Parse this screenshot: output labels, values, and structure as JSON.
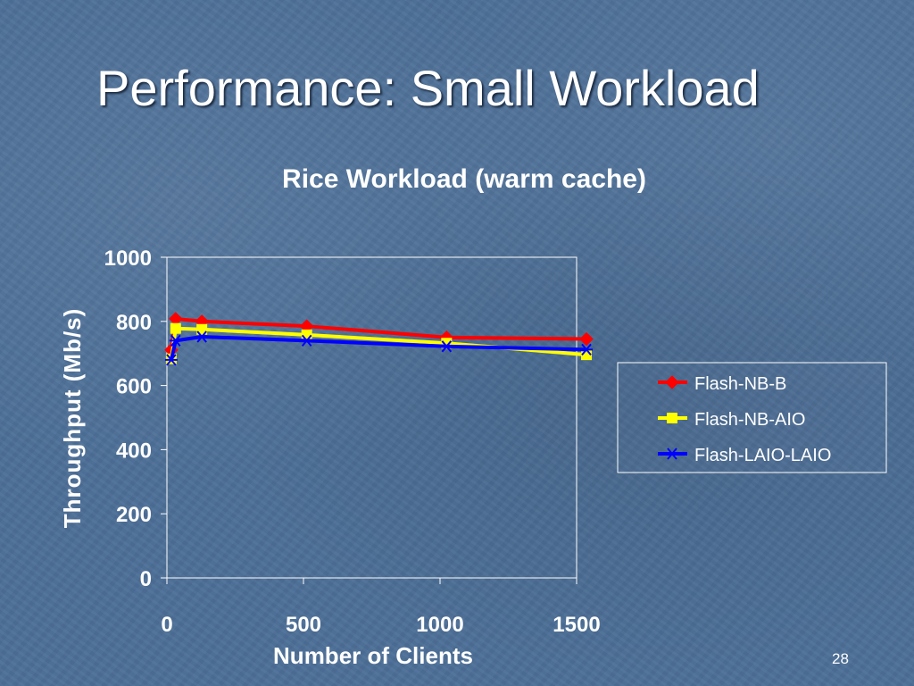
{
  "slide": {
    "title": "Performance: Small Workload",
    "page_number": "28"
  },
  "chart_data": {
    "type": "line",
    "title": "Rice Workload (warm cache)",
    "xlabel": "Number of Clients",
    "ylabel": "Throughput (Mb/s)",
    "xlim": [
      0,
      1500
    ],
    "ylim": [
      0,
      1000
    ],
    "xticks": [
      0,
      500,
      1000,
      1500
    ],
    "yticks": [
      0,
      200,
      400,
      600,
      800,
      1000
    ],
    "grid": false,
    "legend_position": "right",
    "series": [
      {
        "name": "Flash-NB-B",
        "color": "#ff0000",
        "marker": "diamond",
        "x": [
          16,
          32,
          128,
          512,
          1024,
          1536
        ],
        "y": [
          711,
          808,
          800,
          785,
          750,
          745
        ]
      },
      {
        "name": "Flash-NB-AIO",
        "color": "#ffff00",
        "marker": "square",
        "x": [
          16,
          32,
          128,
          512,
          1024,
          1536
        ],
        "y": [
          683,
          778,
          775,
          758,
          732,
          696
        ]
      },
      {
        "name": "Flash-LAIO-LAIO",
        "color": "#0000ff",
        "marker": "asterisk",
        "x": [
          16,
          32,
          128,
          512,
          1024,
          1536
        ],
        "y": [
          680,
          740,
          752,
          740,
          722,
          712
        ]
      }
    ]
  }
}
